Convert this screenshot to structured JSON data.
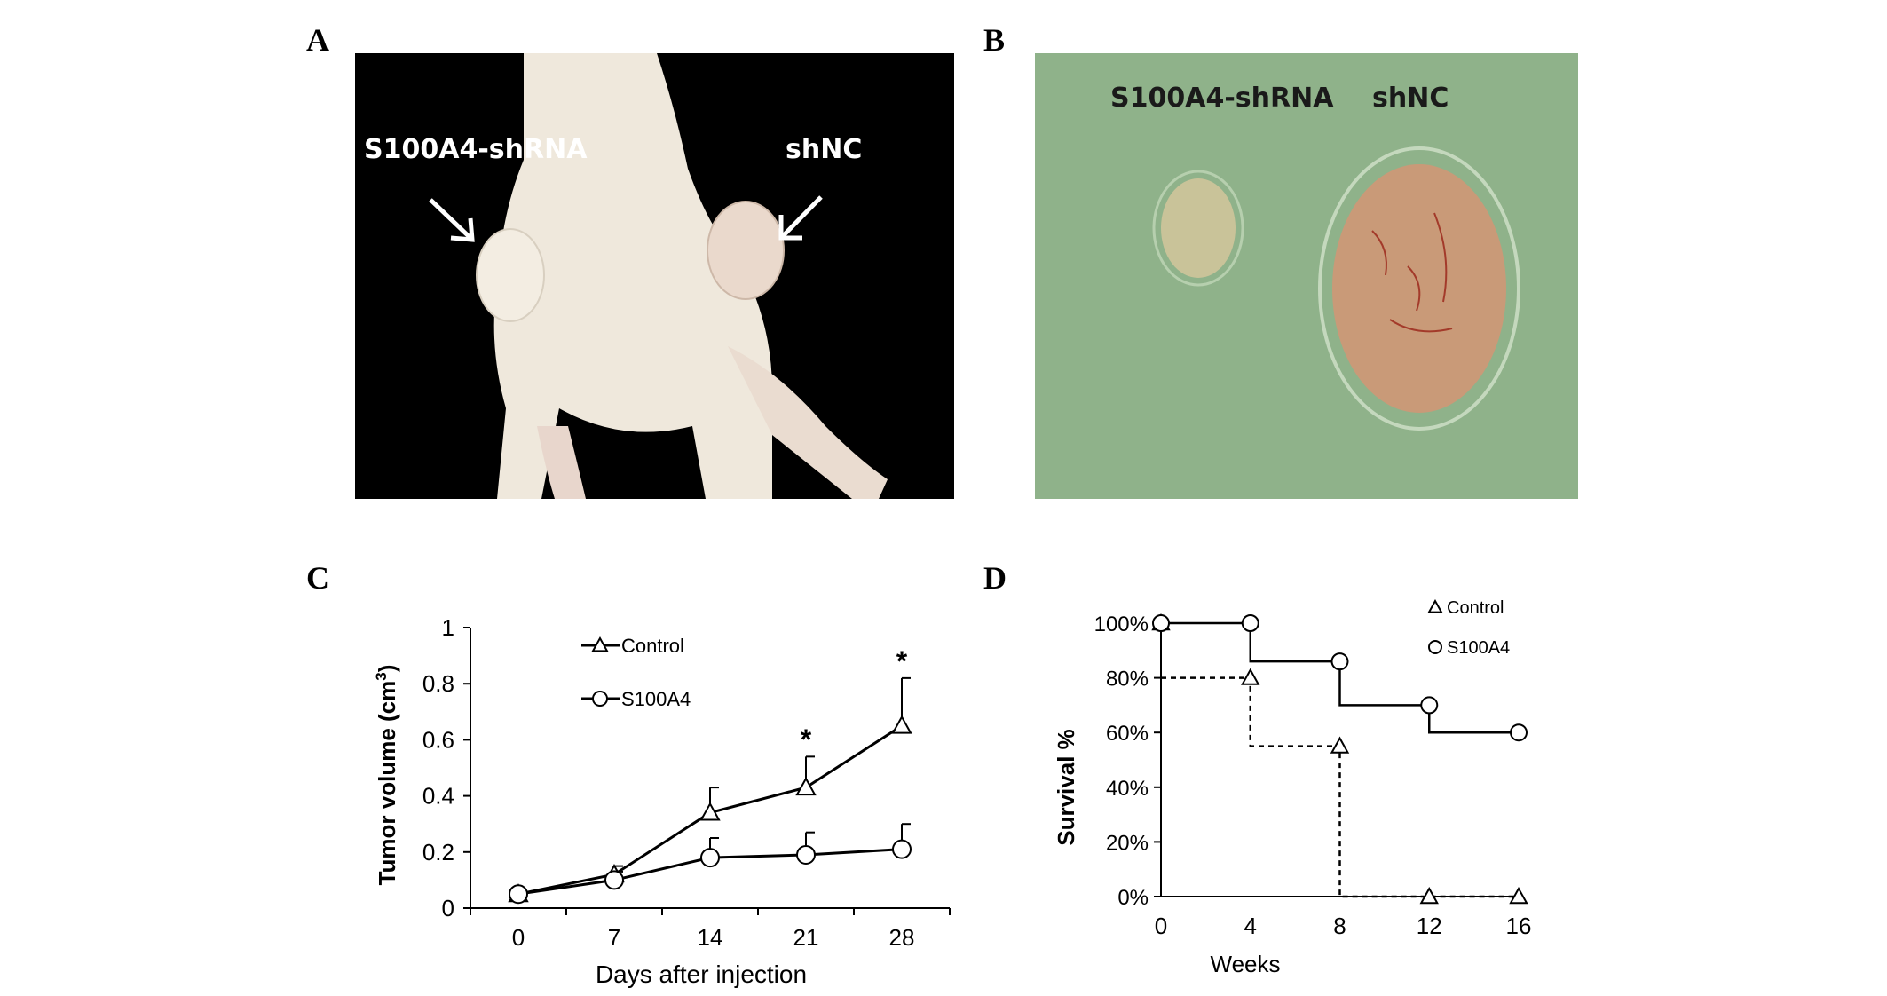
{
  "panels": {
    "a": {
      "letter": "A",
      "label_left": "S100A4-shRNA",
      "label_right": "shNC"
    },
    "b": {
      "letter": "B",
      "label_left": "S100A4-shRNA",
      "label_right": "shNC"
    },
    "c": {
      "letter": "C"
    },
    "d": {
      "letter": "D"
    }
  },
  "colors": {
    "photo_a_background": "#000000",
    "mouse_skin": "#efe8dc",
    "photo_b_background": "#8fb28a",
    "tumor_large": "#c99a78",
    "tumor_small": "#d9c9a0",
    "line": "#000000"
  },
  "chart_data": [
    {
      "type": "line",
      "xlabel": "Days after injection",
      "ylabel": "Tumor volume (cm³)",
      "ylabel_main": "Tumor volume (cm",
      "ylabel_sup": "3",
      "ylabel_end": ")",
      "x": [
        0,
        7,
        14,
        21,
        28
      ],
      "x_ticks": [
        "0",
        "7",
        "14",
        "21",
        "28"
      ],
      "y_ticks": [
        "0",
        "0.2",
        "0.4",
        "0.6",
        "0.8",
        "1"
      ],
      "ylim": [
        0,
        1
      ],
      "grid": false,
      "legend": "top-center",
      "series": [
        {
          "name": "Control",
          "marker": "triangle",
          "values": [
            0.05,
            0.12,
            0.34,
            0.43,
            0.65
          ],
          "error": [
            0,
            0.03,
            0.09,
            0.11,
            0.17
          ]
        },
        {
          "name": "S100A4",
          "marker": "circle",
          "values": [
            0.05,
            0.1,
            0.18,
            0.19,
            0.21
          ],
          "error": [
            0,
            0.03,
            0.07,
            0.08,
            0.09
          ]
        }
      ],
      "annotations": [
        {
          "x": 21,
          "y": 0.61,
          "text": "*"
        },
        {
          "x": 28,
          "y": 0.89,
          "text": "*"
        }
      ]
    },
    {
      "type": "line",
      "xlabel": "Weeks",
      "ylabel": "Survival %",
      "x_ticks": [
        "0",
        "4",
        "8",
        "12",
        "16"
      ],
      "y_ticks": [
        "0%",
        "20%",
        "40%",
        "60%",
        "80%",
        "100%"
      ],
      "xlim": [
        0,
        16
      ],
      "ylim": [
        0,
        100
      ],
      "grid": false,
      "legend": "top-right",
      "series": [
        {
          "name": "Control",
          "marker": "triangle",
          "line_style": "dashed",
          "points": [
            [
              0,
              100
            ],
            [
              4,
              80
            ],
            [
              8,
              55
            ],
            [
              12,
              0
            ],
            [
              16,
              0
            ]
          ],
          "steps": [
            [
              0,
              80
            ],
            [
              4,
              80
            ],
            [
              4,
              55
            ],
            [
              8,
              55
            ],
            [
              8,
              0
            ],
            [
              16,
              0
            ]
          ]
        },
        {
          "name": "S100A4",
          "marker": "circle",
          "line_style": "solid",
          "points": [
            [
              0,
              100
            ],
            [
              4,
              100
            ],
            [
              8,
              86
            ],
            [
              12,
              70
            ],
            [
              16,
              60
            ]
          ],
          "steps": [
            [
              0,
              100
            ],
            [
              4,
              100
            ],
            [
              4,
              86
            ],
            [
              8,
              86
            ],
            [
              8,
              70
            ],
            [
              12,
              70
            ],
            [
              12,
              60
            ],
            [
              16,
              60
            ]
          ]
        }
      ]
    }
  ]
}
